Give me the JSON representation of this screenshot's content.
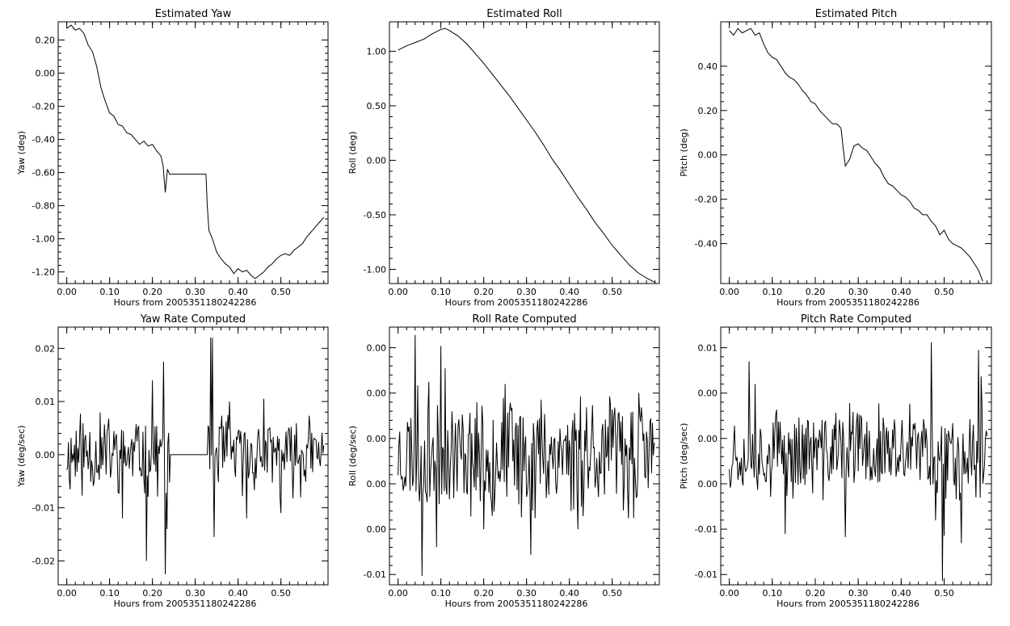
{
  "chart_data": [
    {
      "id": "yaw",
      "type": "line",
      "title": "Estimated Yaw",
      "xlabel": "Hours from 2005351180242286",
      "ylabel": "Yaw (deg)",
      "xlim": [
        -0.02,
        0.61
      ],
      "ylim": [
        -1.27,
        0.31
      ],
      "xticks": [
        "0.00",
        "0.10",
        "0.20",
        "0.30",
        "0.40",
        "0.50"
      ],
      "yticks": [
        "0.20",
        "0.00",
        "-0.20",
        "-0.40",
        "-0.60",
        "-0.80",
        "-1.00",
        "-1.20"
      ],
      "series": [
        {
          "x": [
            0.0,
            0.01,
            0.02,
            0.03,
            0.04,
            0.05,
            0.06,
            0.07,
            0.08,
            0.09,
            0.1,
            0.11,
            0.12,
            0.13,
            0.14,
            0.15,
            0.16,
            0.17,
            0.18,
            0.19,
            0.2,
            0.21,
            0.22,
            0.225,
            0.23,
            0.235,
            0.24,
            0.25,
            0.3,
            0.325,
            0.328,
            0.332,
            0.34,
            0.35,
            0.36,
            0.37,
            0.38,
            0.39,
            0.4,
            0.41,
            0.42,
            0.43,
            0.44,
            0.45,
            0.46,
            0.47,
            0.48,
            0.49,
            0.5,
            0.51,
            0.52,
            0.53,
            0.54,
            0.55,
            0.56,
            0.57,
            0.58,
            0.59,
            0.6
          ],
          "y": [
            0.27,
            0.29,
            0.26,
            0.27,
            0.24,
            0.17,
            0.13,
            0.04,
            -0.09,
            -0.17,
            -0.24,
            -0.26,
            -0.31,
            -0.32,
            -0.36,
            -0.37,
            -0.4,
            -0.43,
            -0.41,
            -0.44,
            -0.43,
            -0.47,
            -0.5,
            -0.56,
            -0.72,
            -0.58,
            -0.61,
            -0.61,
            -0.61,
            -0.61,
            -0.8,
            -0.95,
            -1.0,
            -1.08,
            -1.12,
            -1.15,
            -1.17,
            -1.21,
            -1.18,
            -1.2,
            -1.19,
            -1.22,
            -1.24,
            -1.22,
            -1.2,
            -1.17,
            -1.15,
            -1.12,
            -1.1,
            -1.09,
            -1.1,
            -1.07,
            -1.05,
            -1.03,
            -0.99,
            -0.96,
            -0.93,
            -0.9,
            -0.87
          ]
        }
      ]
    },
    {
      "id": "roll",
      "type": "line",
      "title": "Estimated Roll",
      "xlabel": "Hours from 2005351180242286",
      "ylabel": "Roll (deg)",
      "xlim": [
        -0.02,
        0.61
      ],
      "ylim": [
        -1.13,
        1.27
      ],
      "xticks": [
        "0.00",
        "0.10",
        "0.20",
        "0.30",
        "0.40",
        "0.50"
      ],
      "yticks": [
        "1.00",
        "0.50",
        "0.00",
        "-0.50",
        "-1.00"
      ],
      "series": [
        {
          "x": [
            0.0,
            0.02,
            0.04,
            0.06,
            0.08,
            0.1,
            0.11,
            0.12,
            0.14,
            0.16,
            0.18,
            0.2,
            0.22,
            0.24,
            0.26,
            0.28,
            0.3,
            0.32,
            0.34,
            0.36,
            0.38,
            0.4,
            0.42,
            0.44,
            0.46,
            0.48,
            0.5,
            0.52,
            0.54,
            0.56,
            0.58,
            0.6
          ],
          "y": [
            1.01,
            1.05,
            1.08,
            1.11,
            1.16,
            1.2,
            1.21,
            1.19,
            1.14,
            1.07,
            0.98,
            0.89,
            0.79,
            0.69,
            0.59,
            0.48,
            0.37,
            0.26,
            0.14,
            0.01,
            -0.1,
            -0.22,
            -0.34,
            -0.45,
            -0.57,
            -0.67,
            -0.78,
            -0.87,
            -0.96,
            -1.03,
            -1.08,
            -1.12
          ]
        }
      ]
    },
    {
      "id": "pitch",
      "type": "line",
      "title": "Estimated Pitch",
      "xlabel": "Hours from 2005351180242286",
      "ylabel": "Pitch (deg)",
      "xlim": [
        -0.02,
        0.61
      ],
      "ylim": [
        -0.58,
        0.6
      ],
      "xticks": [
        "0.00",
        "0.10",
        "0.20",
        "0.30",
        "0.40",
        "0.50"
      ],
      "yticks": [
        "0.40",
        "0.20",
        "0.00",
        "-0.20",
        "-0.40"
      ],
      "series": [
        {
          "x": [
            0.0,
            0.01,
            0.02,
            0.03,
            0.04,
            0.05,
            0.06,
            0.07,
            0.08,
            0.09,
            0.1,
            0.11,
            0.12,
            0.13,
            0.14,
            0.15,
            0.16,
            0.17,
            0.18,
            0.19,
            0.2,
            0.21,
            0.22,
            0.23,
            0.24,
            0.25,
            0.26,
            0.265,
            0.27,
            0.28,
            0.29,
            0.3,
            0.31,
            0.32,
            0.33,
            0.34,
            0.35,
            0.36,
            0.37,
            0.38,
            0.39,
            0.4,
            0.41,
            0.42,
            0.43,
            0.44,
            0.45,
            0.46,
            0.47,
            0.48,
            0.49,
            0.5,
            0.51,
            0.52,
            0.53,
            0.54,
            0.55,
            0.56,
            0.57,
            0.58,
            0.59
          ],
          "y": [
            0.56,
            0.54,
            0.57,
            0.55,
            0.56,
            0.57,
            0.54,
            0.55,
            0.5,
            0.46,
            0.44,
            0.43,
            0.4,
            0.37,
            0.35,
            0.34,
            0.32,
            0.29,
            0.27,
            0.24,
            0.23,
            0.2,
            0.18,
            0.16,
            0.14,
            0.14,
            0.12,
            0.03,
            -0.05,
            -0.02,
            0.04,
            0.05,
            0.03,
            0.02,
            -0.01,
            -0.04,
            -0.06,
            -0.1,
            -0.13,
            -0.14,
            -0.16,
            -0.18,
            -0.19,
            -0.21,
            -0.24,
            -0.25,
            -0.27,
            -0.27,
            -0.3,
            -0.32,
            -0.36,
            -0.34,
            -0.38,
            -0.4,
            -0.41,
            -0.42,
            -0.44,
            -0.46,
            -0.49,
            -0.52,
            -0.57
          ]
        }
      ]
    },
    {
      "id": "yaw-rate",
      "type": "line",
      "title": "Yaw Rate Computed",
      "xlabel": "Hours from 2005351180242286",
      "ylabel": "Yaw (deg/sec)",
      "xlim": [
        -0.02,
        0.61
      ],
      "ylim": [
        -0.0245,
        0.024
      ],
      "xticks": [
        "0.00",
        "0.10",
        "0.20",
        "0.30",
        "0.40",
        "0.50"
      ],
      "yticks": [
        "0.02",
        "0.01",
        "0.00",
        "-0.01",
        "-0.02"
      ],
      "series": [
        {
          "noise": true,
          "seed": 11,
          "x_range": [
            0.0,
            0.6
          ],
          "amplitude": 0.0055,
          "flat_range": [
            0.24,
            0.33
          ],
          "flat_value": 0.0,
          "spikes": [
            [
              0.13,
              -0.012
            ],
            [
              0.185,
              -0.02
            ],
            [
              0.2,
              0.014
            ],
            [
              0.225,
              0.0175
            ],
            [
              0.23,
              -0.0225
            ],
            [
              0.235,
              -0.014
            ],
            [
              0.335,
              0.022
            ],
            [
              0.34,
              0.022
            ],
            [
              0.345,
              -0.0155
            ],
            [
              0.29,
              0.0
            ],
            [
              0.38,
              0.01
            ],
            [
              0.42,
              -0.012
            ],
            [
              0.46,
              0.0105
            ],
            [
              0.5,
              -0.011
            ]
          ]
        }
      ]
    },
    {
      "id": "roll-rate",
      "type": "line",
      "title": "Roll Rate Computed",
      "xlabel": "Hours from 2005351180242286",
      "ylabel": "Roll (deg/sec)",
      "xlim": [
        -0.02,
        0.61
      ],
      "ylim": [
        -0.012,
        0.0112
      ],
      "xticks": [
        "0.00",
        "0.10",
        "0.20",
        "0.30",
        "0.40",
        "0.50"
      ],
      "yticks": [
        "0.00",
        "0.00",
        "0.00",
        "0.00",
        "0.00",
        "-0.01"
      ],
      "series": [
        {
          "noise": true,
          "seed": 23,
          "x_range": [
            0.0,
            0.6
          ],
          "amplitude": 0.0042,
          "spikes": [
            [
              0.04,
              0.0105
            ],
            [
              0.05,
              -0.0045
            ],
            [
              0.055,
              -0.0112
            ],
            [
              0.09,
              -0.0086
            ],
            [
              0.1,
              0.0095
            ],
            [
              0.11,
              0.0075
            ],
            [
              0.2,
              -0.007
            ],
            [
              0.22,
              -0.0058
            ],
            [
              0.31,
              -0.0093
            ],
            [
              0.32,
              -0.006
            ],
            [
              0.42,
              -0.007
            ],
            [
              0.55,
              -0.006
            ]
          ]
        }
      ]
    },
    {
      "id": "pitch-rate",
      "type": "line",
      "title": "Pitch Rate Computed",
      "xlabel": "Hours from 2005351180242286",
      "ylabel": "Pitch (deg/sec)",
      "xlim": [
        -0.02,
        0.61
      ],
      "ylim": [
        -0.0175,
        0.0165
      ],
      "xticks": [
        "0.00",
        "0.10",
        "0.20",
        "0.30",
        "0.40",
        "0.50"
      ],
      "yticks": [
        "0.01",
        "0.00",
        "0.00",
        "0.00",
        "-0.01",
        "-0.01"
      ],
      "series": [
        {
          "noise": true,
          "seed": 37,
          "x_range": [
            0.0,
            0.6
          ],
          "amplitude": 0.0045,
          "spikes": [
            [
              0.045,
              0.012
            ],
            [
              0.06,
              0.009
            ],
            [
              0.13,
              -0.0108
            ],
            [
              0.27,
              -0.0112
            ],
            [
              0.47,
              0.0145
            ],
            [
              0.48,
              -0.009
            ],
            [
              0.495,
              -0.017
            ],
            [
              0.5,
              -0.011
            ],
            [
              0.54,
              -0.012
            ],
            [
              0.58,
              0.0135
            ],
            [
              0.585,
              0.01
            ]
          ]
        }
      ]
    }
  ]
}
